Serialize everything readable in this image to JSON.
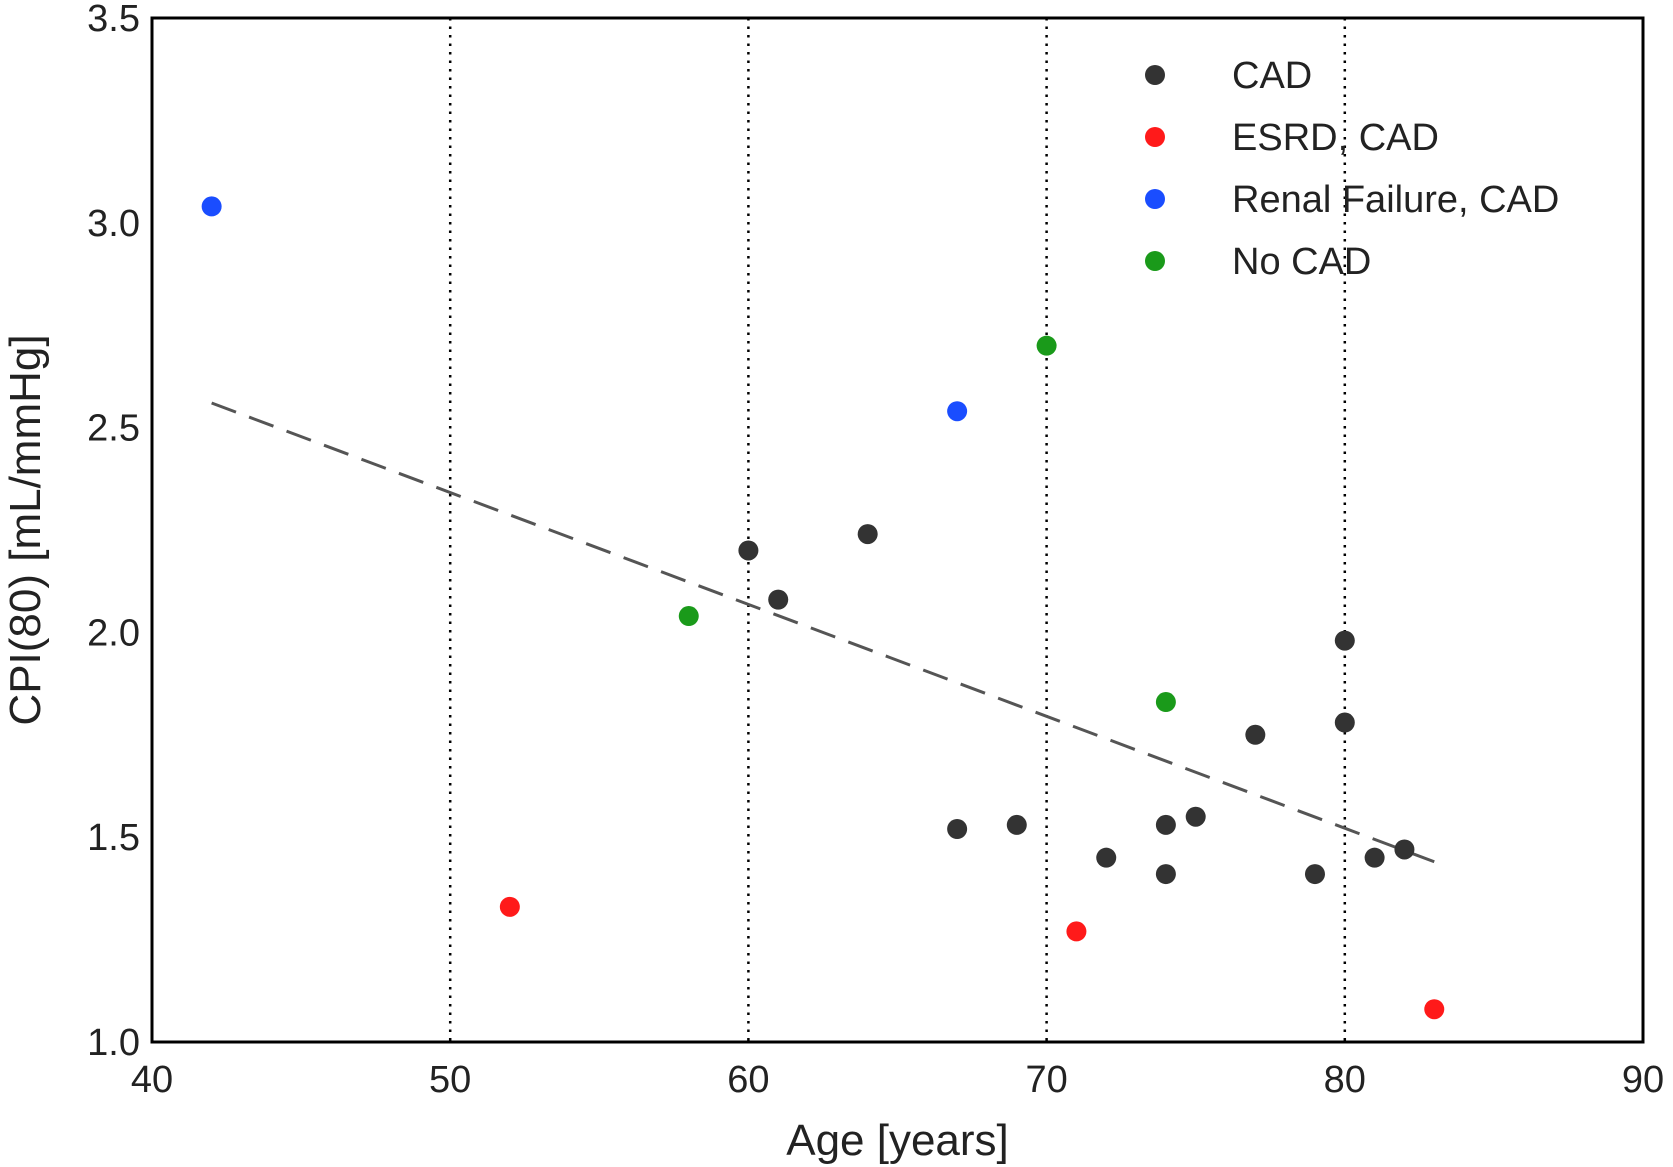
{
  "chart_data": {
    "type": "scatter",
    "title": "",
    "xlabel": "Age [years]",
    "ylabel": "CPI(80) [mL/mmHg]",
    "xlim": [
      40,
      90
    ],
    "ylim": [
      1.0,
      3.5
    ],
    "xticks": [
      40,
      50,
      60,
      70,
      80,
      90
    ],
    "yticks": [
      1.0,
      1.5,
      2.0,
      2.5,
      3.0,
      3.5
    ],
    "xtick_labels": [
      "40",
      "50",
      "60",
      "70",
      "80",
      "90"
    ],
    "ytick_labels": [
      "1.0",
      "1.5",
      "2.0",
      "2.5",
      "3.0",
      "3.5"
    ],
    "grid": "vertical dotted lines at x = 50, 60, 70, 80",
    "vgrid": [
      50,
      60,
      70,
      80
    ],
    "legend_position": "top-right",
    "series": [
      {
        "name": "CAD",
        "color": "#333333",
        "points": [
          {
            "x": 60,
            "y": 2.2
          },
          {
            "x": 61,
            "y": 2.08
          },
          {
            "x": 64,
            "y": 2.24
          },
          {
            "x": 67,
            "y": 1.52
          },
          {
            "x": 69,
            "y": 1.53
          },
          {
            "x": 72,
            "y": 1.45
          },
          {
            "x": 74,
            "y": 1.53
          },
          {
            "x": 74,
            "y": 1.41
          },
          {
            "x": 75,
            "y": 1.55
          },
          {
            "x": 77,
            "y": 1.75
          },
          {
            "x": 79,
            "y": 1.41
          },
          {
            "x": 80,
            "y": 1.98
          },
          {
            "x": 80,
            "y": 1.78
          },
          {
            "x": 81,
            "y": 1.45
          },
          {
            "x": 82,
            "y": 1.47
          }
        ]
      },
      {
        "name": "ESRD, CAD",
        "color": "#ff1a1a",
        "points": [
          {
            "x": 52,
            "y": 1.33
          },
          {
            "x": 71,
            "y": 1.27
          },
          {
            "x": 83,
            "y": 1.08
          }
        ]
      },
      {
        "name": "Renal Failure, CAD",
        "color": "#1a4dff",
        "points": [
          {
            "x": 42,
            "y": 3.04
          },
          {
            "x": 67,
            "y": 2.54
          }
        ]
      },
      {
        "name": "No CAD",
        "color": "#1a9a1a",
        "points": [
          {
            "x": 58,
            "y": 2.04
          },
          {
            "x": 70,
            "y": 2.7
          },
          {
            "x": 74,
            "y": 1.83
          }
        ]
      }
    ],
    "trend_line": {
      "style": "dashed",
      "color": "#555555",
      "x": [
        42,
        83
      ],
      "y": [
        2.56,
        1.44
      ]
    }
  }
}
